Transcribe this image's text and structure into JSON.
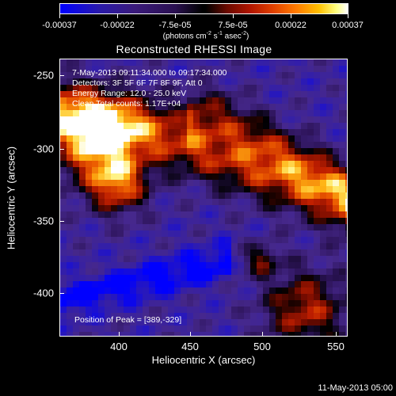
{
  "colorbar": {
    "tick_labels": [
      "-0.00037",
      "-0.00022",
      "-7.5e-05",
      "7.5e-05",
      "0.00022",
      "0.00037"
    ],
    "unit_text": "(photons cm",
    "unit_exp1": "-2",
    "unit_mid": " s",
    "unit_exp2": "-1",
    "unit_mid2": " asec",
    "unit_exp3": "-2",
    "unit_end": ")",
    "range": [
      -0.00037,
      0.00037
    ]
  },
  "chart_data": {
    "type": "heatmap",
    "title": "Reconstructed RHESSI Image",
    "xlabel": "Heliocentric X (arcsec)",
    "ylabel": "Heliocentric Y (arcsec)",
    "xlim": [
      360,
      551
    ],
    "ylim": [
      -428,
      -238
    ],
    "x_ticks": [
      "400",
      "450",
      "500",
      "550"
    ],
    "y_ticks": [
      "-250",
      "-300",
      "-350",
      "-400"
    ],
    "x_tick_values": [
      400,
      450,
      500,
      550
    ],
    "y_tick_values": [
      -250,
      -300,
      -350,
      -400
    ],
    "peak": [
      389,
      -329
    ],
    "colors": {
      "low": "#0000ff",
      "mid": "#000000",
      "high": "#ffffff"
    }
  },
  "info": {
    "time": "7-May-2013 09:11:34.000 to 09:17:34.000",
    "detectors": "Detectors: 3F 5F 6F 7F 8F 9F, Att 0",
    "energy": "Energy Range: 12.0 - 25.0 keV",
    "clean": "Clean     Total counts: 1.17E+04",
    "peak": "Position of Peak = [389,-329]"
  },
  "footer": {
    "date": "11-May-2013 05:00"
  }
}
